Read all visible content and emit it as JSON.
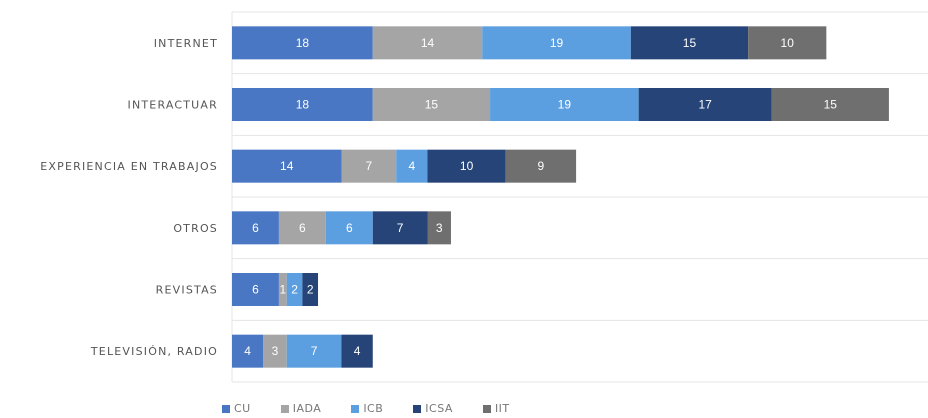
{
  "chart_data": {
    "type": "bar",
    "orientation": "horizontal",
    "stacked": true,
    "title": "",
    "xlabel": "",
    "ylabel": "",
    "categories": [
      "INTERNET",
      "INTERACTUAR",
      "EXPERIENCIA EN TRABAJOS",
      "OTROS",
      "REVISTAS",
      "TELEVISIÓN, RADIO"
    ],
    "series": [
      {
        "name": "CU",
        "color": "#4a77c4",
        "values": [
          18,
          18,
          14,
          6,
          6,
          4
        ]
      },
      {
        "name": "IADA",
        "color": "#a5a5a5",
        "values": [
          14,
          15,
          7,
          6,
          1,
          3
        ]
      },
      {
        "name": "ICB",
        "color": "#5c9fe0",
        "values": [
          19,
          19,
          4,
          6,
          2,
          7
        ]
      },
      {
        "name": "ICSA",
        "color": "#264478",
        "values": [
          15,
          17,
          10,
          7,
          2,
          4
        ]
      },
      {
        "name": "IIT",
        "color": "#6f6f6f",
        "values": [
          10,
          15,
          9,
          3,
          0,
          0
        ]
      }
    ],
    "xlim": [
      0,
      89
    ],
    "grid": "vertical",
    "legend_position": "bottom"
  }
}
